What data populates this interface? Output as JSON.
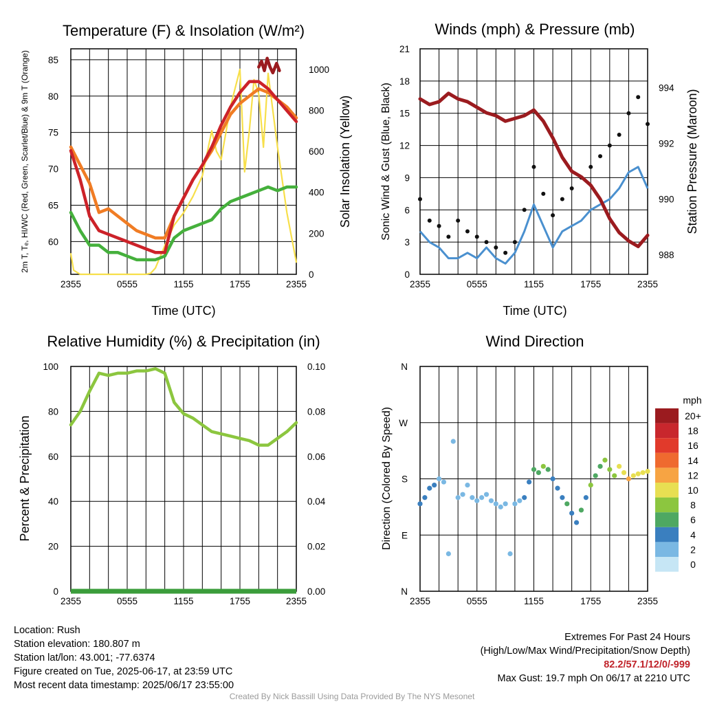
{
  "chart_data": [
    {
      "type": "line",
      "title": "Temperature (F) & Insolation (W/m²)",
      "xlabel": "Time (UTC)",
      "ylabel": "2m T, Tₑ, HI/WC (Red, Green, Scarlet/Blue) & 9m T (Orange)",
      "ylabel_right": "Solar Insolation (Yellow)",
      "x_ticks": [
        "2355",
        "0555",
        "1155",
        "1755",
        "2355"
      ],
      "ylim": [
        55.5,
        86.5
      ],
      "y_ticks": [
        60,
        65,
        70,
        75,
        80,
        85
      ],
      "ylim_right": [
        0,
        1100
      ],
      "y_ticks_right": [
        0,
        200,
        400,
        600,
        800,
        1000
      ],
      "grid": true,
      "series": [
        {
          "axis": "left",
          "color": "#cc2229",
          "x": [
            0,
            1,
            2,
            3,
            4,
            5,
            6,
            7,
            8,
            9,
            10,
            11,
            12,
            13,
            14,
            15,
            16,
            17,
            18,
            19,
            20,
            21,
            22,
            23,
            24
          ],
          "values": [
            72.5,
            68.5,
            63.5,
            61.5,
            61.0,
            60.5,
            60.0,
            59.5,
            59.0,
            58.5,
            58.5,
            63.5,
            66.0,
            68.5,
            70.5,
            73.0,
            76.0,
            78.5,
            80.5,
            82.0,
            82.0,
            81.0,
            79.5,
            78.0,
            76.5
          ]
        },
        {
          "axis": "left",
          "color": "#9b1b1f",
          "x": [
            20.0,
            20.3,
            20.6,
            20.9,
            21.2,
            21.5,
            21.9,
            22.2
          ],
          "values": [
            84.0,
            84.8,
            83.5,
            85.2,
            84.0,
            83.2,
            84.5,
            83.5
          ]
        },
        {
          "axis": "left",
          "color": "#f07c24",
          "x": [
            0,
            1,
            2,
            3,
            4,
            5,
            6,
            7,
            8,
            9,
            10,
            11,
            12,
            13,
            14,
            15,
            16,
            17,
            18,
            19,
            20,
            21,
            22,
            23,
            24
          ],
          "values": [
            73.0,
            70.5,
            68.0,
            64.0,
            64.5,
            63.5,
            62.5,
            61.5,
            61.0,
            60.5,
            60.5,
            63.5,
            66.0,
            68.5,
            70.5,
            72.5,
            75.0,
            77.5,
            79.0,
            80.0,
            81.0,
            80.5,
            79.5,
            78.5,
            77.0
          ]
        },
        {
          "axis": "left",
          "color": "#45b03c",
          "x": [
            0,
            1,
            2,
            3,
            4,
            5,
            6,
            7,
            8,
            9,
            10,
            11,
            12,
            13,
            14,
            15,
            16,
            17,
            18,
            19,
            20,
            21,
            22,
            23,
            24
          ],
          "values": [
            64.0,
            61.5,
            59.5,
            59.5,
            58.5,
            58.5,
            58.0,
            57.5,
            57.5,
            57.5,
            58.0,
            60.5,
            61.5,
            62.0,
            62.5,
            63.0,
            64.5,
            65.5,
            66.0,
            66.5,
            67.0,
            67.5,
            67.0,
            67.5,
            67.5
          ]
        },
        {
          "axis": "right",
          "color": "#f7df4a",
          "x": [
            0,
            0.3,
            1,
            2,
            3,
            4,
            5,
            6,
            7,
            8,
            8.5,
            9,
            10,
            11,
            12,
            13,
            14,
            15,
            15.5,
            16,
            17,
            18,
            18.5,
            19,
            19.5,
            20,
            20.5,
            21,
            21.5,
            22,
            23,
            24
          ],
          "values": [
            100,
            20,
            0,
            0,
            0,
            0,
            0,
            0,
            0,
            0,
            5,
            30,
            140,
            240,
            300,
            380,
            480,
            700,
            600,
            560,
            820,
            1000,
            500,
            700,
            950,
            880,
            620,
            980,
            800,
            620,
            300,
            60
          ]
        }
      ]
    },
    {
      "type": "line",
      "title": "Winds (mph) & Pressure (mb)",
      "xlabel": "Time (UTC)",
      "ylabel": "Sonic Wind & Gust (Blue, Black)",
      "ylabel_right": "Station Pressure (Maroon)",
      "x_ticks": [
        "2355",
        "0555",
        "1155",
        "1755",
        "2355"
      ],
      "ylim": [
        0,
        21
      ],
      "y_ticks": [
        0,
        3,
        6,
        9,
        12,
        15,
        18,
        21
      ],
      "ylim_right": [
        987.3,
        995.4
      ],
      "y_ticks_right": [
        988,
        990,
        992,
        994
      ],
      "grid": true,
      "series": [
        {
          "name": "wind",
          "axis": "left",
          "color": "#4a90cf",
          "x": [
            0,
            1,
            2,
            3,
            4,
            5,
            6,
            7,
            8,
            9,
            10,
            11,
            12,
            13,
            14,
            15,
            16,
            17,
            18,
            19,
            20,
            21,
            22,
            23,
            24
          ],
          "values": [
            4.0,
            3.0,
            2.5,
            1.5,
            1.5,
            2.0,
            1.5,
            2.5,
            1.5,
            1.0,
            2.0,
            4.0,
            6.5,
            4.5,
            2.5,
            4.0,
            4.5,
            5.0,
            6.0,
            6.5,
            7.0,
            8.0,
            9.5,
            10.0,
            8.0
          ]
        },
        {
          "name": "gust",
          "axis": "left",
          "color": "#111111",
          "type": "scatter",
          "x": [
            0,
            1,
            2,
            3,
            4,
            5,
            6,
            7,
            8,
            9,
            10,
            11,
            12,
            13,
            14,
            15,
            16,
            17,
            18,
            19,
            20,
            21,
            22,
            23,
            24
          ],
          "values": [
            7.0,
            5.0,
            4.5,
            3.5,
            5.0,
            4.0,
            3.5,
            3.0,
            2.5,
            2.0,
            3.0,
            6.0,
            10.0,
            7.5,
            5.5,
            7.0,
            8.0,
            9.0,
            10.0,
            11.0,
            12.0,
            13.0,
            15.0,
            16.5,
            14.0
          ]
        },
        {
          "name": "pressure",
          "axis": "right",
          "color": "#9b1b1f",
          "x": [
            0,
            1,
            2,
            3,
            4,
            5,
            6,
            7,
            8,
            9,
            10,
            11,
            12,
            13,
            14,
            15,
            16,
            17,
            18,
            19,
            20,
            21,
            22,
            23,
            24
          ],
          "values": [
            993.6,
            993.4,
            993.5,
            993.8,
            993.6,
            993.5,
            993.3,
            993.1,
            993.0,
            992.8,
            992.9,
            993.0,
            993.2,
            992.8,
            992.2,
            991.5,
            991.0,
            990.8,
            990.5,
            990.0,
            989.3,
            988.8,
            988.5,
            988.3,
            988.7
          ]
        }
      ]
    },
    {
      "type": "line",
      "title": "Relative Humidity (%) & Precipitation (in)",
      "xlabel": "",
      "ylabel": "Percent & Precipitation",
      "x_ticks": [
        "2355",
        "0555",
        "1155",
        "1755",
        "2355"
      ],
      "ylim": [
        0,
        100
      ],
      "y_ticks": [
        0,
        20,
        40,
        60,
        80,
        100
      ],
      "ylim_right": [
        0,
        0.1
      ],
      "y_ticks_right": [
        "0.00",
        "0.02",
        "0.04",
        "0.06",
        "0.08",
        "0.10"
      ],
      "grid": true,
      "series": [
        {
          "name": "rh",
          "axis": "left",
          "color": "#8cc63f",
          "x": [
            0,
            1,
            2,
            3,
            4,
            5,
            6,
            7,
            8,
            9,
            10,
            11,
            12,
            13,
            14,
            15,
            16,
            17,
            18,
            19,
            20,
            21,
            22,
            23,
            24
          ],
          "values": [
            74,
            80,
            89,
            97,
            96,
            97,
            97,
            98,
            98,
            99,
            97,
            84,
            79,
            77,
            74,
            71,
            70,
            69,
            68,
            67,
            65,
            65,
            68,
            71,
            75
          ]
        },
        {
          "name": "precip",
          "axis": "right",
          "color": "#3b9d3b",
          "x": [
            0,
            24
          ],
          "values": [
            0,
            0
          ]
        }
      ]
    },
    {
      "type": "scatter",
      "title": "Wind Direction",
      "xlabel": "",
      "ylabel": "Direction (Colored By Speed)",
      "x_ticks": [
        "2355",
        "0555",
        "1155",
        "1755",
        "2355"
      ],
      "y_ticks": [
        "N",
        "E",
        "S",
        "W",
        "N"
      ],
      "ylim": [
        0,
        360
      ],
      "grid": true,
      "legend": {
        "title": "mph",
        "placement": "right",
        "labels": [
          "20+",
          "18",
          "16",
          "14",
          "12",
          "10",
          "8",
          "6",
          "4",
          "2",
          "0"
        ],
        "colors": [
          "#9b1b1f",
          "#c8272d",
          "#e13a2b",
          "#ef6a2f",
          "#f7a443",
          "#e8df52",
          "#8cc63f",
          "#4ea862",
          "#3a7fbf",
          "#7ab8e3",
          "#c6e6f5"
        ]
      },
      "x": [
        0,
        0.5,
        1,
        1.5,
        2,
        2.5,
        3,
        3.5,
        4,
        4.5,
        5,
        5.5,
        6,
        6.5,
        7,
        7.5,
        8,
        8.5,
        9,
        9.5,
        10,
        10.5,
        11,
        11.5,
        12,
        12.5,
        13,
        13.5,
        14,
        14.5,
        15,
        15.5,
        16,
        16.5,
        17,
        17.5,
        18,
        18.5,
        19,
        19.5,
        20,
        20.5,
        21,
        21.5,
        22,
        22.5,
        23,
        23.5,
        24
      ],
      "values": [
        140,
        150,
        165,
        170,
        180,
        175,
        60,
        240,
        150,
        155,
        170,
        150,
        145,
        150,
        155,
        145,
        140,
        135,
        140,
        60,
        140,
        145,
        150,
        175,
        195,
        190,
        200,
        195,
        180,
        165,
        150,
        140,
        125,
        110,
        130,
        150,
        170,
        185,
        200,
        210,
        195,
        185,
        200,
        190,
        180,
        185,
        188,
        190,
        192
      ],
      "speeds": [
        4,
        4,
        3,
        3,
        2,
        2,
        1,
        1,
        2,
        2,
        2,
        2,
        2,
        2,
        2,
        2,
        2,
        1,
        1,
        1,
        2,
        2,
        3,
        4,
        6,
        6,
        7,
        6,
        4,
        4,
        4,
        5,
        4,
        4,
        5,
        4,
        7,
        6,
        6,
        8,
        8,
        8,
        9,
        10,
        11,
        10,
        10,
        9,
        9
      ]
    }
  ],
  "info": {
    "location": "Location: Rush",
    "elevation": "Station elevation: 180.807 m",
    "latlon": "Station lat/lon: 43.001; -77.6374",
    "created": "Figure created on Tue, 2025-06-17, at 23:59 UTC",
    "recent": "Most recent data timestamp: 2025/06/17 23:55:00"
  },
  "extremes": {
    "title": "Extremes For Past 24 Hours",
    "subtitle": "(High/Low/Max Wind/Precipitation/Snow Depth)",
    "values": "82.2/57.1/12/0/-999",
    "gust": "Max Gust: 19.7 mph On 06/17 at 2210 UTC"
  },
  "credit": "Created By Nick Bassill Using Data Provided By The NYS Mesonet"
}
